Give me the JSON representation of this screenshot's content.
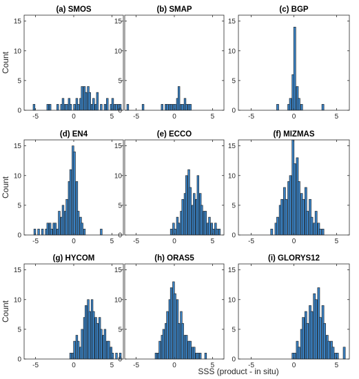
{
  "figure": {
    "xlabel": "SSS (product - in situ)",
    "ylabel": "Count",
    "bar_color": "#3a82c4",
    "bar_edge_color": "#1a1a1a"
  },
  "chart_data": [
    {
      "type": "bar",
      "title": "(a) SMOS",
      "ylabel": "Count",
      "xlabel": "",
      "xlim": [
        -6.5,
        6.5
      ],
      "ylim": [
        0,
        16
      ],
      "xticks": [
        -5,
        0,
        5
      ],
      "yticks": [
        0,
        5,
        10,
        15
      ],
      "bin_width": 0.25,
      "x": [
        -5.2,
        -3.4,
        -3.1,
        -2.1,
        -1.6,
        -1.4,
        -1.1,
        -0.9,
        -0.6,
        -0.4,
        0.1,
        0.4,
        0.6,
        0.9,
        1.1,
        1.4,
        1.6,
        1.9,
        2.1,
        2.4,
        2.6,
        2.9,
        3.1,
        3.6,
        4.1,
        4.4,
        4.9,
        5.1,
        5.4,
        5.6,
        5.9,
        6.1
      ],
      "values": [
        1,
        1,
        1,
        1,
        1,
        2,
        1,
        1,
        2,
        1,
        1,
        2,
        1,
        2,
        4,
        4,
        3,
        4,
        3,
        1,
        2,
        1,
        3,
        1,
        1,
        2,
        1,
        2,
        1,
        1,
        1,
        1
      ]
    },
    {
      "type": "bar",
      "title": "(b) SMAP",
      "ylabel": "",
      "xlabel": "",
      "xlim": [
        -6.5,
        6.5
      ],
      "ylim": [
        0,
        16
      ],
      "xticks": [
        -5,
        0,
        5
      ],
      "yticks": [
        0,
        5,
        10,
        15
      ],
      "bin_width": 0.25,
      "x": [
        -6.1,
        -4.1,
        -1.6,
        -1.1,
        -0.9,
        -0.6,
        -0.4,
        -0.1,
        0.1,
        0.4,
        0.6,
        0.9,
        1.1,
        1.4,
        1.6,
        1.9,
        2.1
      ],
      "values": [
        1,
        1,
        1,
        1,
        1,
        1,
        1,
        1,
        1,
        2,
        4,
        1,
        1,
        2,
        1,
        1,
        1
      ]
    },
    {
      "type": "bar",
      "title": "(c) BGP",
      "ylabel": "",
      "xlabel": "",
      "xlim": [
        -6.5,
        6.5
      ],
      "ylim": [
        0,
        16
      ],
      "xticks": [
        -5,
        0,
        5
      ],
      "yticks": [
        0,
        5,
        10,
        15
      ],
      "bin_width": 0.25,
      "x": [
        -1.9,
        -0.6,
        -0.4,
        -0.1,
        0.1,
        0.4,
        0.6,
        0.9,
        3.4
      ],
      "values": [
        1,
        1,
        2,
        6,
        14,
        4,
        2,
        1,
        1
      ]
    },
    {
      "type": "bar",
      "title": "(d) EN4",
      "ylabel": "Count",
      "xlabel": "",
      "xlim": [
        -6.5,
        6.5
      ],
      "ylim": [
        0,
        16
      ],
      "xticks": [
        -5,
        0,
        5
      ],
      "yticks": [
        0,
        5,
        10,
        15
      ],
      "bin_width": 0.25,
      "x": [
        -5.1,
        -4.6,
        -4.1,
        -3.6,
        -3.4,
        -3.1,
        -2.9,
        -2.6,
        -2.4,
        -2.1,
        -1.9,
        -1.6,
        -1.4,
        -1.1,
        -0.9,
        -0.6,
        -0.4,
        -0.1,
        0.1,
        0.4,
        0.6,
        0.9,
        1.1,
        1.4,
        3.6
      ],
      "values": [
        1,
        1,
        1,
        1,
        2,
        2,
        1,
        2,
        2,
        1,
        4,
        3,
        5,
        4,
        6,
        9,
        11,
        15,
        14,
        9,
        4,
        3,
        2,
        1,
        1
      ]
    },
    {
      "type": "bar",
      "title": "(e) ECCO",
      "ylabel": "",
      "xlabel": "",
      "xlim": [
        -6.5,
        6.5
      ],
      "ylim": [
        0,
        16
      ],
      "xticks": [
        -5,
        0,
        5
      ],
      "yticks": [
        0,
        5,
        10,
        15
      ],
      "bin_width": 0.25,
      "x": [
        -0.4,
        -0.1,
        0.1,
        0.4,
        0.6,
        0.9,
        1.1,
        1.4,
        1.6,
        1.9,
        2.1,
        2.4,
        2.6,
        2.9,
        3.1,
        3.4,
        3.6,
        3.9,
        4.1,
        4.4,
        4.6,
        4.9,
        5.1,
        5.4,
        5.6,
        5.9
      ],
      "values": [
        1,
        2,
        1,
        3,
        2,
        4,
        6,
        7,
        10,
        11,
        8,
        5,
        7,
        6,
        10,
        7,
        5,
        4,
        4,
        2,
        3,
        2,
        1,
        2,
        1,
        1
      ]
    },
    {
      "type": "bar",
      "title": "(f) MIZMAS",
      "ylabel": "",
      "xlabel": "",
      "xlim": [
        -6.5,
        6.5
      ],
      "ylim": [
        0,
        16
      ],
      "xticks": [
        -5,
        0,
        5
      ],
      "yticks": [
        0,
        5,
        10,
        15
      ],
      "bin_width": 0.25,
      "x": [
        -2.6,
        -2.1,
        -1.9,
        -1.6,
        -1.4,
        -1.1,
        -0.9,
        -0.6,
        -0.4,
        -0.1,
        0.1,
        0.4,
        0.6,
        0.9,
        1.1,
        1.4,
        1.6,
        1.9,
        2.1,
        2.4,
        2.6,
        2.9,
        3.1,
        3.4
      ],
      "values": [
        1,
        2,
        3,
        5,
        6,
        8,
        6,
        9,
        10,
        16,
        12,
        13,
        9,
        7,
        6,
        8,
        4,
        6,
        3,
        2,
        4,
        2,
        1,
        1
      ]
    },
    {
      "type": "bar",
      "title": "(g) HYCOM",
      "ylabel": "Count",
      "xlabel": "",
      "xlim": [
        -6.5,
        6.5
      ],
      "ylim": [
        0,
        16
      ],
      "xticks": [
        -5,
        0,
        5
      ],
      "yticks": [
        0,
        5,
        10,
        15
      ],
      "bin_width": 0.25,
      "x": [
        -0.4,
        -0.1,
        0.1,
        0.4,
        0.6,
        0.9,
        1.1,
        1.4,
        1.6,
        1.9,
        2.1,
        2.4,
        2.6,
        2.9,
        3.1,
        3.4,
        3.6,
        3.9,
        4.1,
        4.4,
        4.6,
        4.9,
        5.1,
        5.6,
        6.1
      ],
      "values": [
        1,
        1,
        3,
        4,
        3,
        2,
        5,
        7,
        9,
        10,
        8,
        10,
        8,
        7,
        6,
        7,
        5,
        4,
        5,
        3,
        3,
        2,
        1,
        1,
        1
      ]
    },
    {
      "type": "bar",
      "title": "(h) ORAS5",
      "ylabel": "",
      "xlabel": "SSS (product - in situ)",
      "xlim": [
        -6.5,
        6.5
      ],
      "ylim": [
        0,
        16
      ],
      "xticks": [
        -5,
        0,
        5
      ],
      "yticks": [
        0,
        5,
        10,
        15
      ],
      "bin_width": 0.25,
      "x": [
        -2.4,
        -2.1,
        -1.9,
        -1.6,
        -1.4,
        -1.1,
        -0.9,
        -0.6,
        -0.4,
        -0.1,
        0.1,
        0.4,
        0.6,
        0.9,
        1.1,
        1.4,
        1.6,
        1.9,
        2.1,
        2.4,
        2.6,
        2.9,
        3.1,
        3.4,
        4.1
      ],
      "values": [
        1,
        1,
        3,
        4,
        5,
        6,
        8,
        10,
        12,
        13,
        11,
        10,
        6,
        8,
        6,
        4,
        4,
        3,
        3,
        2,
        2,
        1,
        1,
        1,
        1
      ]
    },
    {
      "type": "bar",
      "title": "(i) GLORYS12",
      "ylabel": "",
      "xlabel": "",
      "xlim": [
        -6.5,
        6.5
      ],
      "ylim": [
        0,
        16
      ],
      "xticks": [
        -5,
        0,
        5
      ],
      "yticks": [
        0,
        5,
        10,
        15
      ],
      "bin_width": 0.25,
      "x": [
        -0.1,
        0.1,
        0.4,
        0.6,
        0.9,
        1.1,
        1.4,
        1.6,
        1.9,
        2.1,
        2.4,
        2.6,
        2.9,
        3.1,
        3.4,
        3.6,
        3.9,
        4.1,
        4.4,
        4.6,
        4.9,
        5.1,
        5.9
      ],
      "values": [
        1,
        1,
        3,
        2,
        5,
        7,
        8,
        6,
        9,
        8,
        11,
        10,
        12,
        7,
        9,
        6,
        4,
        3,
        3,
        2,
        1,
        1,
        2
      ]
    }
  ]
}
